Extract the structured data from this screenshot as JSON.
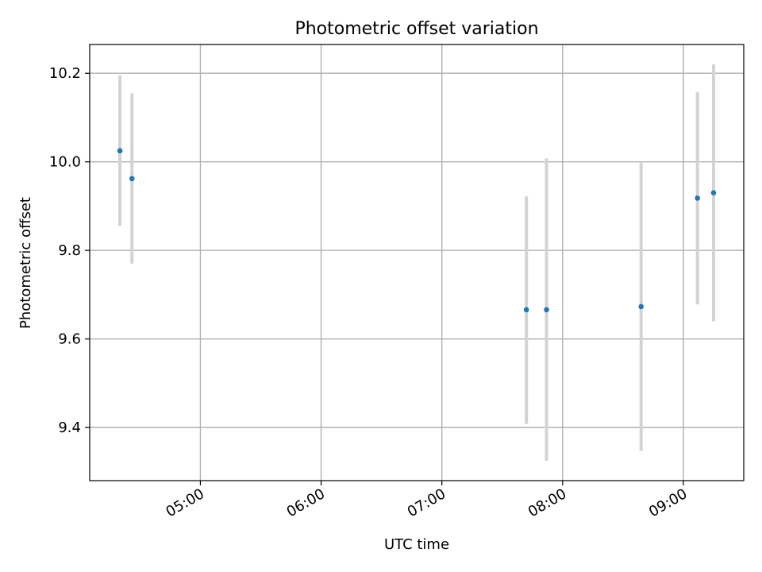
{
  "chart_data": {
    "type": "scatter",
    "title": "Photometric offset variation",
    "xlabel": "UTC time",
    "ylabel": "Photometric offset",
    "x_axis_type": "time",
    "xlim": [
      "04:05",
      "09:30"
    ],
    "ylim": [
      9.28,
      10.265
    ],
    "x_ticks": [
      "05:00",
      "06:00",
      "07:00",
      "08:00",
      "09:00"
    ],
    "y_ticks": [
      9.4,
      9.6,
      9.8,
      10.0,
      10.2
    ],
    "y_tick_labels": [
      "9.4",
      "9.6",
      "9.8",
      "10.0",
      "10.2"
    ],
    "grid": true,
    "colors": {
      "point": "#1f77b4",
      "errorbar": "#d3d3d3",
      "grid": "#b0b0b0"
    },
    "points": [
      {
        "x": "04:20",
        "y": 10.025,
        "y_low": 9.855,
        "y_high": 10.195
      },
      {
        "x": "04:26",
        "y": 9.962,
        "y_low": 9.77,
        "y_high": 10.155
      },
      {
        "x": "07:42",
        "y": 9.666,
        "y_low": 9.408,
        "y_high": 9.922
      },
      {
        "x": "07:52",
        "y": 9.666,
        "y_low": 9.325,
        "y_high": 10.008
      },
      {
        "x": "08:39",
        "y": 9.673,
        "y_low": 9.347,
        "y_high": 9.998
      },
      {
        "x": "09:07",
        "y": 9.918,
        "y_low": 9.678,
        "y_high": 10.158
      },
      {
        "x": "09:15",
        "y": 9.93,
        "y_low": 9.64,
        "y_high": 10.22
      }
    ]
  }
}
